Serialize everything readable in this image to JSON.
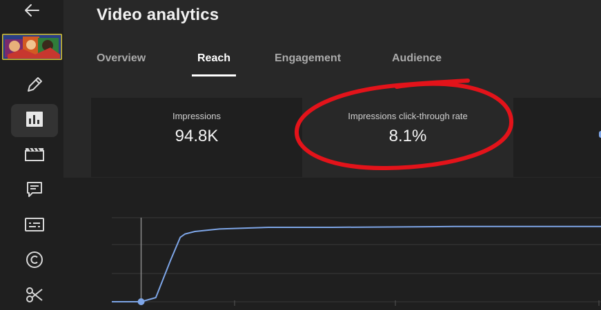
{
  "page": {
    "title": "Video analytics"
  },
  "nav": {
    "back_icon": "arrow-left-icon",
    "items": [
      {
        "name": "details",
        "icon": "pencil-icon"
      },
      {
        "name": "analytics",
        "icon": "bar-chart-icon",
        "active": true
      },
      {
        "name": "editor",
        "icon": "clapperboard-icon"
      },
      {
        "name": "comments",
        "icon": "comment-icon"
      },
      {
        "name": "subtitles",
        "icon": "subtitles-icon"
      },
      {
        "name": "copyright",
        "icon": "copyright-icon"
      },
      {
        "name": "clips",
        "icon": "scissors-icon"
      }
    ]
  },
  "tabs": [
    {
      "label": "Overview",
      "active": false
    },
    {
      "label": "Reach",
      "active": true
    },
    {
      "label": "Engagement",
      "active": false
    },
    {
      "label": "Audience",
      "active": false
    }
  ],
  "metrics": [
    {
      "label": "Impressions",
      "value": "94.8K"
    },
    {
      "label": "Impressions click-through rate",
      "value": "8.1%",
      "highlighted": true
    }
  ],
  "colors": {
    "accent_line": "#7ea6e8",
    "annotation": "#e3131a",
    "active_tab_underline": "#ffffff"
  },
  "chart_data": {
    "type": "line",
    "grid": true,
    "series": [
      {
        "x": [
          0,
          0.06,
          0.09,
          0.12,
          0.14,
          0.15,
          0.17,
          0.22,
          0.32,
          0.45,
          0.7,
          1.0
        ],
        "values": [
          0,
          0,
          0.05,
          0.5,
          0.78,
          0.82,
          0.85,
          0.88,
          0.9,
          0.9,
          0.91,
          0.91
        ]
      }
    ],
    "marker_x": 0.06
  }
}
